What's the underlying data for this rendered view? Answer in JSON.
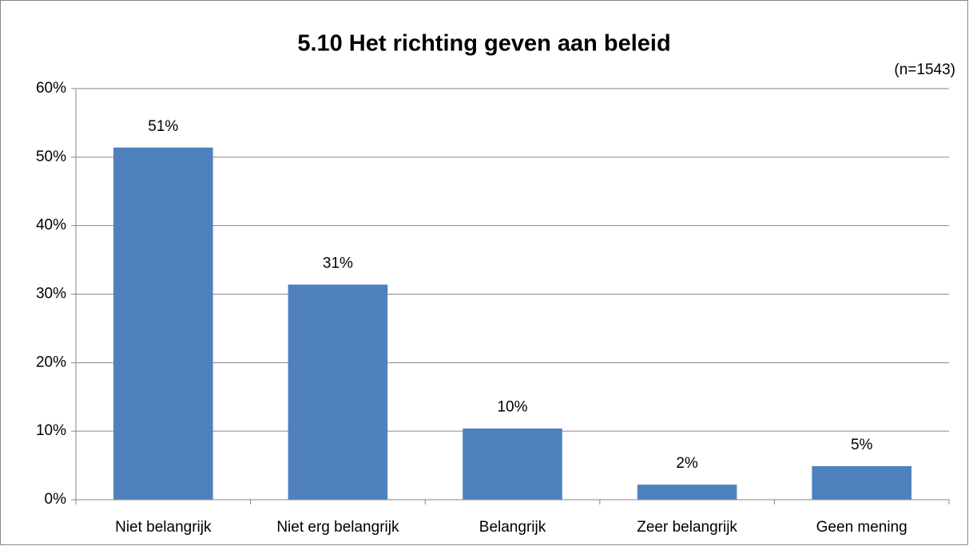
{
  "chart_data": {
    "type": "bar",
    "title": "5.10 Het richting geven aan beleid",
    "subtitle": "(n=1543)",
    "categories": [
      "Niet belangrijk",
      "Niet erg belangrijk",
      "Belangrijk",
      "Zeer belangrijk",
      "Geen mening"
    ],
    "values": [
      51.4,
      31.4,
      10.4,
      2.2,
      4.9
    ],
    "value_labels": [
      "51%",
      "31%",
      "10%",
      "2%",
      "5%"
    ],
    "color": "#4f81bd",
    "ylim": [
      0,
      60
    ],
    "yticks": [
      {
        "value": 0,
        "label": "0%"
      },
      {
        "value": 10,
        "label": "10%"
      },
      {
        "value": 20,
        "label": "20%"
      },
      {
        "value": 30,
        "label": "30%"
      },
      {
        "value": 40,
        "label": "40%"
      },
      {
        "value": 50,
        "label": "50%"
      },
      {
        "value": 60,
        "label": "60%"
      }
    ],
    "grid": true
  }
}
